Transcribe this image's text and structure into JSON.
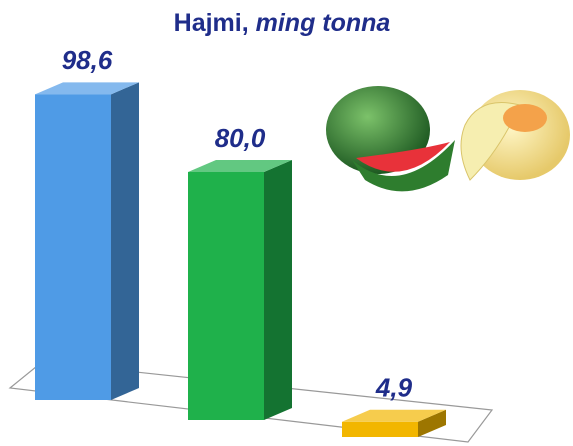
{
  "chart_data": {
    "type": "bar3d",
    "title": "Hajmi,",
    "unit": "ming tonna",
    "categories": [
      null,
      null,
      null
    ],
    "values": [
      98.6,
      80.0,
      4.9
    ],
    "value_labels": [
      "98,6",
      "80,0",
      "4,9"
    ],
    "colors": [
      "#4f9be6",
      "#1fb14b",
      "#f2b600"
    ]
  }
}
